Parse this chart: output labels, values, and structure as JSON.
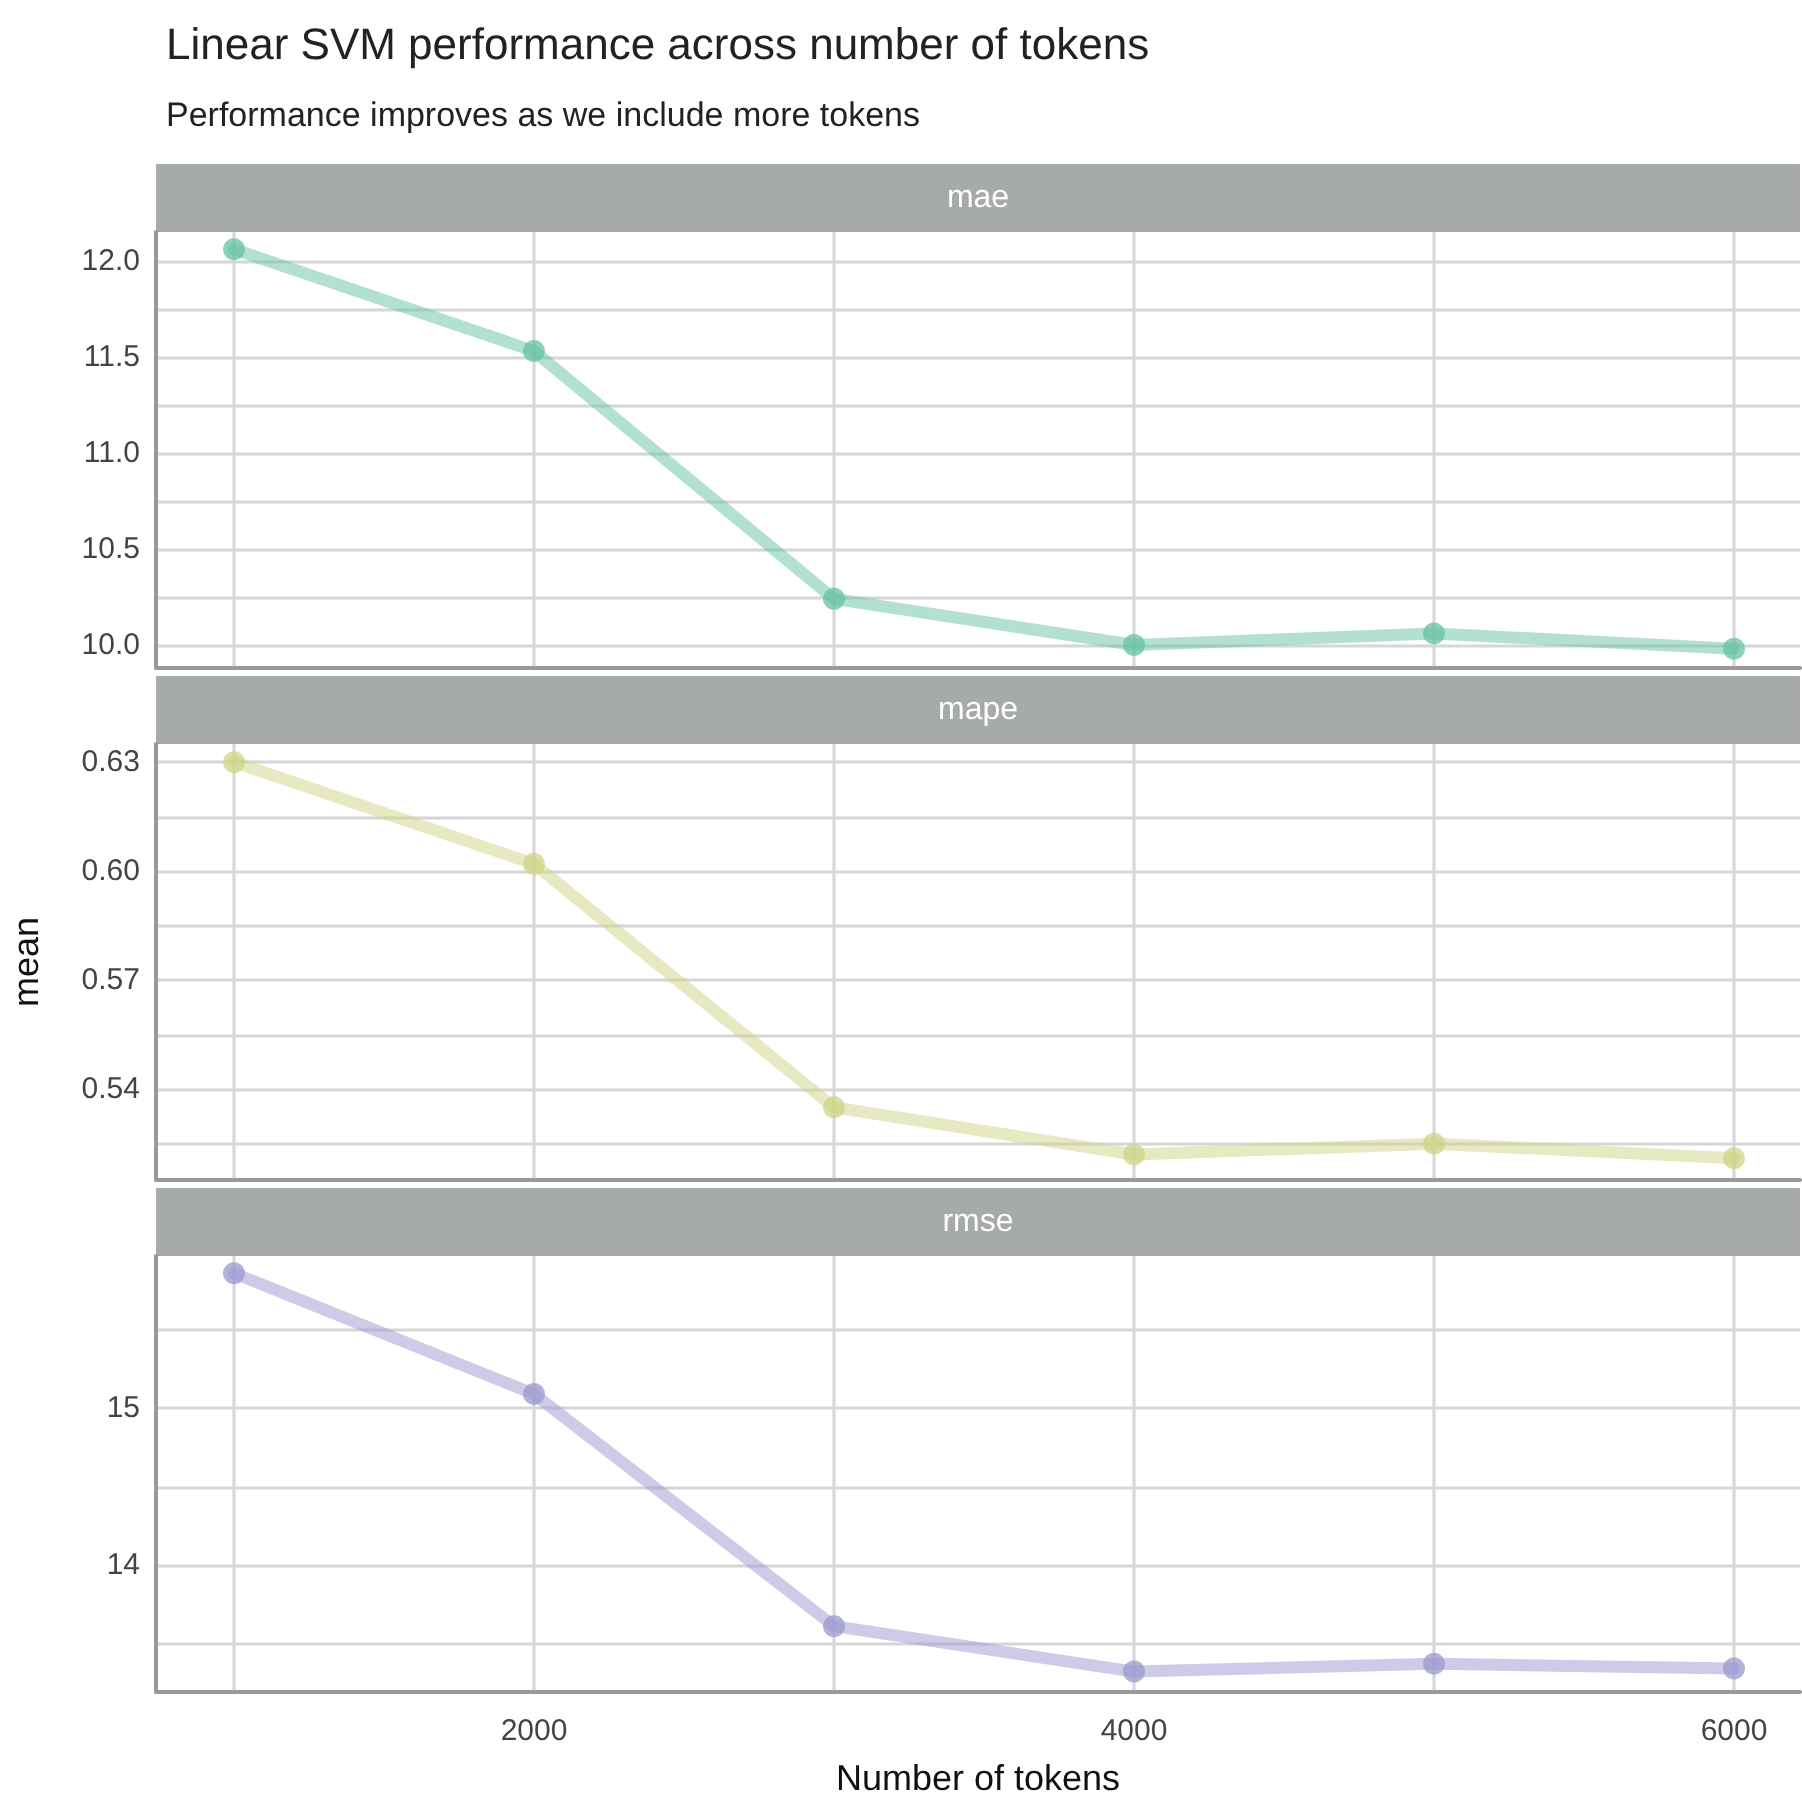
{
  "chart_data": [
    {
      "type": "line",
      "title": "Linear SVM performance across number of tokens",
      "subtitle": "Performance improves as we include more tokens",
      "x": [
        1000,
        2000,
        3000,
        4000,
        5000,
        6000
      ],
      "series": [
        {
          "name": "mae",
          "color": "#66c2a5",
          "values": [
            12.06,
            11.53,
            10.24,
            10.0,
            10.06,
            9.98
          ]
        }
      ],
      "xlim": [
        740,
        6220
      ],
      "xticks": [
        {
          "value": 1000,
          "label": null
        },
        {
          "value": 2000,
          "label": null
        },
        {
          "value": 3000,
          "label": null
        },
        {
          "value": 4000,
          "label": null
        },
        {
          "value": 5000,
          "label": null
        },
        {
          "value": 6000,
          "label": null
        }
      ],
      "ylim": [
        9.88,
        12.15
      ],
      "yticks": [
        {
          "value": 10,
          "label": "10.0"
        },
        {
          "value": 10.25,
          "label": null
        },
        10.5,
        {
          "value": 10.75,
          "label": null
        },
        {
          "value": 11,
          "label": "11.0"
        },
        {
          "value": 11.25,
          "label": null
        },
        11.5,
        {
          "value": 11.75,
          "label": null
        },
        {
          "value": 12,
          "label": "12.0"
        }
      ],
      "tick_labels": "y",
      "grid": true,
      "marker": "circle",
      "line_style": "solid"
    },
    {
      "type": "line",
      "ylabel": "mean",
      "x": [
        1000,
        2000,
        3000,
        4000,
        5000,
        6000
      ],
      "series": [
        {
          "name": "mape",
          "color": "#cdd486",
          "values": [
            0.63,
            0.602,
            0.535,
            0.522,
            0.525,
            0.521
          ]
        }
      ],
      "xlim": [
        740,
        6220
      ],
      "xticks": [
        {
          "value": 1000,
          "label": null
        },
        {
          "value": 2000,
          "label": null
        },
        {
          "value": 3000,
          "label": null
        },
        {
          "value": 4000,
          "label": null
        },
        {
          "value": 5000,
          "label": null
        },
        {
          "value": 6000,
          "label": null
        }
      ],
      "ylim": [
        0.515,
        0.635
      ],
      "yticks": [
        {
          "value": 0.525,
          "label": null
        },
        0.54,
        {
          "value": 0.555,
          "label": null
        },
        {
          "value": 0.57,
          "label": "0.57"
        },
        {
          "value": 0.585,
          "label": null
        },
        {
          "value": 0.6,
          "label": "0.60"
        },
        {
          "value": 0.615,
          "label": null
        },
        0.63
      ],
      "tick_labels": "y",
      "grid": true,
      "marker": "circle",
      "line_style": "solid"
    },
    {
      "type": "line",
      "xlabel": "Number of tokens",
      "x": [
        1000,
        2000,
        3000,
        4000,
        5000,
        6000
      ],
      "series": [
        {
          "name": "rmse",
          "color": "#9b98cf",
          "values": [
            15.86,
            15.09,
            13.61,
            13.32,
            13.37,
            13.34
          ]
        }
      ],
      "xlim": [
        740,
        6220
      ],
      "xticks": [
        {
          "value": 1000,
          "label": null
        },
        2000,
        {
          "value": 3000,
          "label": null
        },
        4000,
        {
          "value": 5000,
          "label": null
        },
        6000
      ],
      "ylim": [
        13.19,
        15.97
      ],
      "yticks": [
        {
          "value": 13.5,
          "label": null
        },
        14,
        {
          "value": 14.5,
          "label": null
        },
        15,
        {
          "value": 15.5,
          "label": null
        }
      ],
      "grid": true,
      "marker": "circle",
      "line_style": "solid"
    }
  ]
}
